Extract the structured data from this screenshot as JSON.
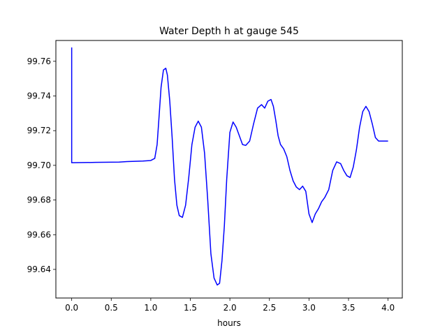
{
  "chart_data": {
    "type": "line",
    "title": "Water Depth h at gauge 545",
    "xlabel": "hours",
    "ylabel": "",
    "xlim": [
      -0.2,
      4.18
    ],
    "ylim": [
      99.6235,
      99.772
    ],
    "xticks": [
      0.0,
      0.5,
      1.0,
      1.5,
      2.0,
      2.5,
      3.0,
      3.5,
      4.0
    ],
    "xtick_labels": [
      "0.0",
      "0.5",
      "1.0",
      "1.5",
      "2.0",
      "2.5",
      "3.0",
      "3.5",
      "4.0"
    ],
    "yticks": [
      99.64,
      99.66,
      99.68,
      99.7,
      99.72,
      99.74,
      99.76
    ],
    "ytick_labels": [
      "99.64",
      "99.66",
      "99.68",
      "99.70",
      "99.72",
      "99.74",
      "99.76"
    ],
    "grid": false,
    "color": "#0000ff",
    "series": [
      {
        "x": [
          0.0,
          0.0,
          0.01,
          0.3,
          0.6,
          0.7,
          0.9,
          1.0,
          1.05,
          1.08,
          1.1,
          1.13,
          1.16,
          1.19,
          1.21,
          1.24,
          1.27,
          1.3,
          1.33,
          1.36,
          1.4,
          1.44,
          1.48,
          1.52,
          1.56,
          1.6,
          1.64,
          1.68,
          1.72,
          1.76,
          1.8,
          1.84,
          1.87,
          1.9,
          1.93,
          1.96,
          2.0,
          2.04,
          2.08,
          2.12,
          2.16,
          2.2,
          2.25,
          2.3,
          2.35,
          2.4,
          2.44,
          2.48,
          2.52,
          2.55,
          2.58,
          2.61,
          2.64,
          2.68,
          2.72,
          2.76,
          2.8,
          2.84,
          2.88,
          2.92,
          2.96,
          3.0,
          3.04,
          3.08,
          3.12,
          3.16,
          3.2,
          3.25,
          3.3,
          3.35,
          3.4,
          3.44,
          3.48,
          3.52,
          3.56,
          3.6,
          3.64,
          3.68,
          3.72,
          3.76,
          3.8,
          3.84,
          3.88,
          3.92,
          3.96,
          4.0
        ],
        "y": [
          99.768,
          99.7015,
          99.7015,
          99.7017,
          99.7019,
          99.7022,
          99.7025,
          99.7028,
          99.704,
          99.712,
          99.725,
          99.745,
          99.755,
          99.756,
          99.752,
          99.737,
          99.716,
          99.692,
          99.677,
          99.671,
          99.67,
          99.677,
          99.693,
          99.712,
          99.722,
          99.7255,
          99.722,
          99.707,
          99.68,
          99.649,
          99.635,
          99.631,
          99.632,
          99.645,
          99.665,
          99.692,
          99.719,
          99.725,
          99.722,
          99.717,
          99.712,
          99.7115,
          99.714,
          99.724,
          99.733,
          99.735,
          99.733,
          99.737,
          99.738,
          99.734,
          99.726,
          99.717,
          99.712,
          99.7095,
          99.705,
          99.697,
          99.691,
          99.6875,
          99.686,
          99.688,
          99.685,
          99.672,
          99.667,
          99.672,
          99.675,
          99.679,
          99.6815,
          99.686,
          99.697,
          99.702,
          99.701,
          99.697,
          99.694,
          99.693,
          99.699,
          99.709,
          99.722,
          99.731,
          99.734,
          99.731,
          99.724,
          99.716,
          99.714,
          99.714,
          99.714,
          99.714
        ]
      }
    ]
  }
}
